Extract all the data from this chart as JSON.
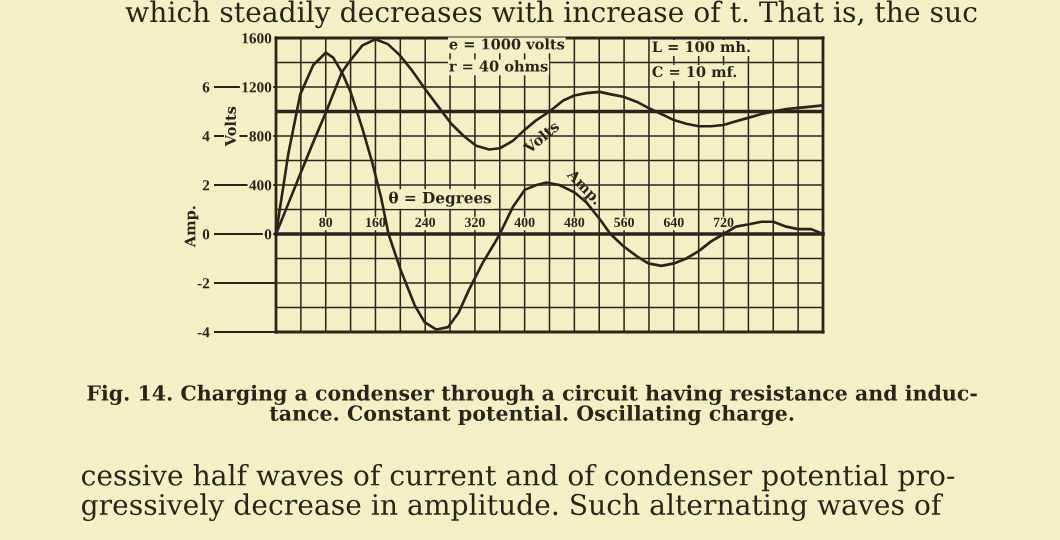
{
  "chart_data": {
    "type": "line",
    "xlabel": "θ = Degrees",
    "ylabel": "Volts",
    "y2label": "Amp.",
    "annotations": [
      "e = 1000 volts",
      "r = 40 ohms",
      "L = 100 mh.",
      "C = 10 mf.",
      "Fig. 14. Charging a condenser through a circuit having resistance and induc-\ntance. Constant potential. Oscillating charge.",
      "which steadily decreases with increase of t. That is, the suc",
      "cessive half waves of current and of condenser potential pro-\ngressively decrease in amplitude. Such alternating waves of"
    ],
    "series": [
      {
        "name": "Volts",
        "color": "#2a251b",
        "axis": "y",
        "x": [
          0,
          20,
          39,
          60,
          80,
          106,
          120,
          139,
          160,
          180,
          199,
          218,
          239,
          261,
          282,
          302,
          322,
          343,
          360,
          381,
          400,
          419,
          440,
          462,
          480,
          499,
          521,
          539,
          559,
          580,
          599,
          620,
          640,
          660,
          680,
          700,
          720,
          740,
          761,
          781,
          800,
          821,
          840,
          861,
          880
        ],
        "values": [
          0,
          250,
          490,
          750,
          990,
          1320,
          1420,
          1540,
          1590,
          1550,
          1460,
          1340,
          1190,
          1040,
          900,
          800,
          720,
          690,
          700,
          760,
          850,
          930,
          1000,
          1090,
          1130,
          1150,
          1160,
          1140,
          1120,
          1080,
          1030,
          980,
          930,
          900,
          880,
          880,
          890,
          920,
          950,
          980,
          1000,
          1020,
          1030,
          1040,
          1050
        ]
      },
      {
        "name": "Amp.",
        "color": "#2a251b",
        "axis": "y2",
        "x": [
          0,
          20,
          39,
          60,
          80,
          92,
          106,
          120,
          139,
          155,
          169,
          181,
          201,
          223,
          239,
          258,
          277,
          294,
          310,
          332,
          351,
          360,
          381,
          400,
          419,
          435,
          456,
          480,
          499,
          521,
          538,
          559,
          580,
          599,
          620,
          640,
          660,
          680,
          700,
          720,
          740,
          761,
          781,
          800,
          821,
          840,
          861,
          880
        ],
        "values": [
          0,
          3.3,
          5.7,
          6.9,
          7.4,
          7.2,
          6.6,
          5.8,
          4.3,
          2.9,
          1.5,
          0,
          -1.5,
          -2.9,
          -3.6,
          -3.9,
          -3.8,
          -3.2,
          -2.3,
          -1.2,
          -0.4,
          0,
          1.1,
          1.8,
          2.0,
          2.1,
          2.0,
          1.7,
          1.3,
          0.6,
          0,
          -0.5,
          -0.9,
          -1.2,
          -1.3,
          -1.2,
          -1.0,
          -0.7,
          -0.3,
          0,
          0.3,
          0.4,
          0.5,
          0.5,
          0.3,
          0.2,
          0.2,
          0
        ]
      }
    ],
    "xlim": [
      0,
      880
    ],
    "xticks": [
      {
        "value": 40,
        "label": null
      },
      80,
      {
        "value": 120,
        "label": null
      },
      160,
      {
        "value": 200,
        "label": null
      },
      240,
      {
        "value": 280,
        "label": null
      },
      320,
      {
        "value": 360,
        "label": null
      },
      400,
      {
        "value": 440,
        "label": null
      },
      480,
      {
        "value": 520,
        "label": null
      },
      560,
      {
        "value": 600,
        "label": null
      },
      640,
      {
        "value": 680,
        "label": null
      },
      720,
      {
        "value": 760,
        "label": null
      },
      {
        "value": 800,
        "label": null
      },
      {
        "value": 840,
        "label": null
      }
    ],
    "ylim": [
      -800,
      1600
    ],
    "yticks": [
      {
        "value": -600,
        "label": null
      },
      {
        "value": -400,
        "label": null
      },
      {
        "value": -200,
        "label": null
      },
      0,
      {
        "value": 200,
        "label": null
      },
      400,
      {
        "value": 600,
        "label": null
      },
      800,
      1200,
      {
        "value": 1400,
        "label": null
      },
      1600
    ],
    "y2lim": [
      -4,
      8
    ],
    "y2ticks": [
      -4,
      -2,
      0,
      2,
      4,
      6
    ],
    "ref_lines": [
      {
        "axis": "y",
        "value": 1000
      }
    ],
    "grid": true
  }
}
